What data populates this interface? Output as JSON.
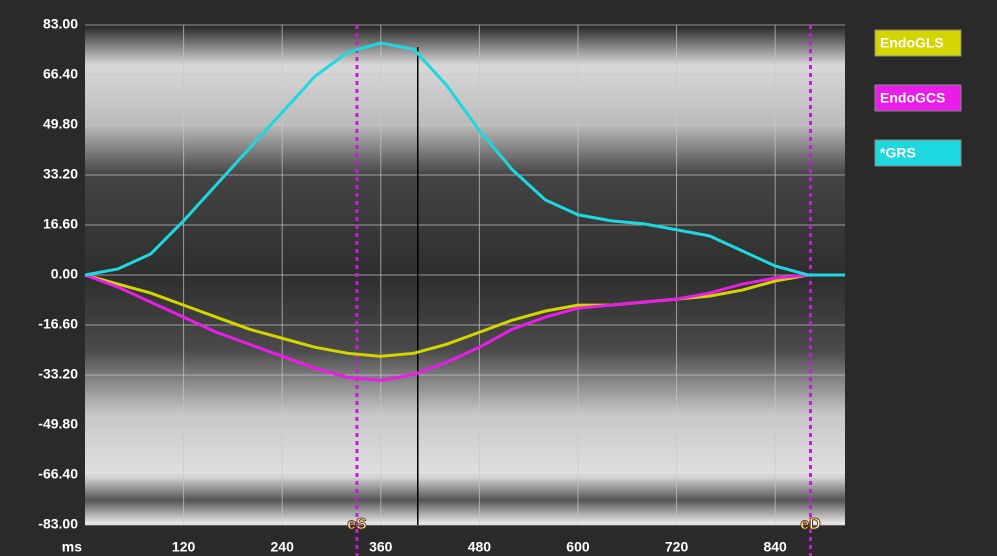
{
  "chart_data": {
    "type": "line",
    "x_label": "ms",
    "x": [
      0,
      40,
      80,
      120,
      160,
      200,
      240,
      280,
      320,
      360,
      400,
      440,
      480,
      520,
      560,
      600,
      640,
      680,
      720,
      760,
      800,
      840,
      880,
      925
    ],
    "series": [
      {
        "name": "EndoGLS",
        "color": "#d4d400",
        "values": [
          0,
          -3,
          -6,
          -10,
          -14,
          -18,
          -21,
          -24,
          -26,
          -27,
          -26,
          -23,
          -19,
          -15,
          -12,
          -10,
          -10,
          -9,
          -8,
          -7,
          -5,
          -2,
          0,
          0
        ]
      },
      {
        "name": "EndoGCS",
        "color": "#e81ee8",
        "values": [
          0,
          -4,
          -9,
          -14,
          -19,
          -23,
          -27,
          -31,
          -34,
          -35,
          -33,
          -29,
          -24,
          -18,
          -14,
          -11,
          -10,
          -9,
          -8,
          -6,
          -3,
          -1,
          0,
          0
        ]
      },
      {
        "name": "*GRS",
        "color": "#1ed8e0",
        "values": [
          0,
          2,
          7,
          18,
          30,
          42,
          54,
          66,
          74,
          77,
          75,
          63,
          48,
          35,
          25,
          20,
          18,
          17,
          15,
          13,
          8,
          3,
          0,
          0
        ]
      }
    ],
    "xlim": [
      0,
      925
    ],
    "xticks": [
      120,
      240,
      360,
      480,
      600,
      720,
      840
    ],
    "ylim": [
      -83,
      83
    ],
    "yticks": [
      {
        "value": 83,
        "label": "83.00"
      },
      {
        "value": 66.4,
        "label": "66.40"
      },
      {
        "value": 49.8,
        "label": "49.80"
      },
      {
        "value": 33.2,
        "label": "33.20"
      },
      {
        "value": 16.6,
        "label": "16.60"
      },
      {
        "value": 0,
        "label": "0.00"
      },
      {
        "value": -16.6,
        "label": "-16.60"
      },
      {
        "value": -33.2,
        "label": "-33.20"
      },
      {
        "value": -49.8,
        "label": "-49.80"
      },
      {
        "value": -66.4,
        "label": "-66.40"
      },
      {
        "value": -83,
        "label": "-83.00"
      }
    ],
    "grid": true,
    "markers": [
      {
        "label": "eS",
        "x": 331,
        "color": "#c020d0"
      },
      {
        "label": "eD",
        "x": 883,
        "color": "#c020d0"
      }
    ],
    "cursor": 405
  }
}
